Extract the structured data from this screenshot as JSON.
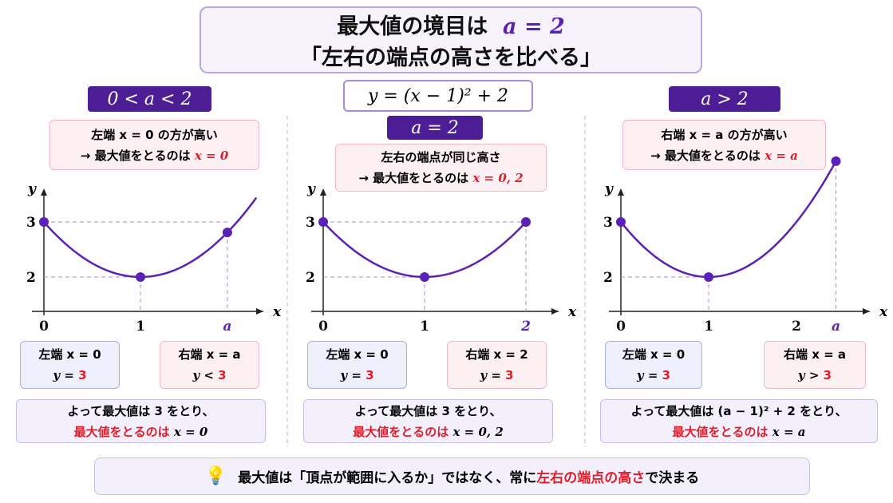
{
  "title": {
    "line1": "最大値の境目は",
    "math": "a = 2",
    "line2": "「左右の端点の高さを比べる」"
  },
  "formula": "y = (x − 1)² + 2",
  "panels": [
    {
      "header": "0 < a < 2",
      "note": {
        "line1": "左端 x = 0 の方が高い",
        "line2": "→ 最大値をとるのは",
        "answer": "x = 0"
      },
      "graph": {
        "y_axis": "y",
        "x_axis": "x",
        "y_labels": [
          "3",
          "2"
        ],
        "x_labels": [
          "0",
          "1",
          "a"
        ]
      },
      "left_bubble": {
        "line1": "左端 x = 0",
        "line2": "y =",
        "value": "3"
      },
      "right_bubble": {
        "line1": "右端 x = a",
        "line2": "y <",
        "value": "3"
      },
      "conclusion": {
        "line1": "よって最大値は 3 をとり、",
        "line2": "最大値をとるのは",
        "answer": "x = 0"
      }
    },
    {
      "header": "a = 2",
      "note": {
        "line1": "左右の端点が同じ高さ",
        "line2": "→ 最大値をとるのは",
        "answer": "x = 0, 2"
      },
      "graph": {
        "y_axis": "y",
        "x_axis": "x",
        "y_labels": [
          "3",
          "2"
        ],
        "x_labels": [
          "0",
          "1",
          "2"
        ]
      },
      "left_bubble": {
        "line1": "左端 x = 0",
        "line2": "y =",
        "value": "3"
      },
      "right_bubble": {
        "line1": "右端 x = 2",
        "line2": "y =",
        "value": "3"
      },
      "conclusion": {
        "line1": "よって最大値は 3 をとり、",
        "line2": "最大値をとるのは",
        "answer": "x = 0, 2"
      }
    },
    {
      "header": "a > 2",
      "note": {
        "line1": "右端 x = a の方が高い",
        "line2": "→ 最大値をとるのは",
        "answer": "x = a"
      },
      "graph": {
        "y_axis": "y",
        "x_axis": "x",
        "y_labels": [
          "3",
          "2"
        ],
        "x_labels": [
          "0",
          "1",
          "2",
          "a"
        ]
      },
      "left_bubble": {
        "line1": "左端 x = 0",
        "line2": "y =",
        "value": "3"
      },
      "right_bubble": {
        "line1": "右端 x = a",
        "line2": "y >",
        "value": "3"
      },
      "conclusion": {
        "line1": "よって最大値は (a − 1)² + 2 をとり、",
        "line2": "最大値をとるのは",
        "answer": "x = a"
      }
    }
  ],
  "footer": {
    "before": "最大値は「頂点が範囲に入るか」ではなく、常に",
    "highlight": "左右の端点の高さ",
    "after": "で決まる"
  }
}
